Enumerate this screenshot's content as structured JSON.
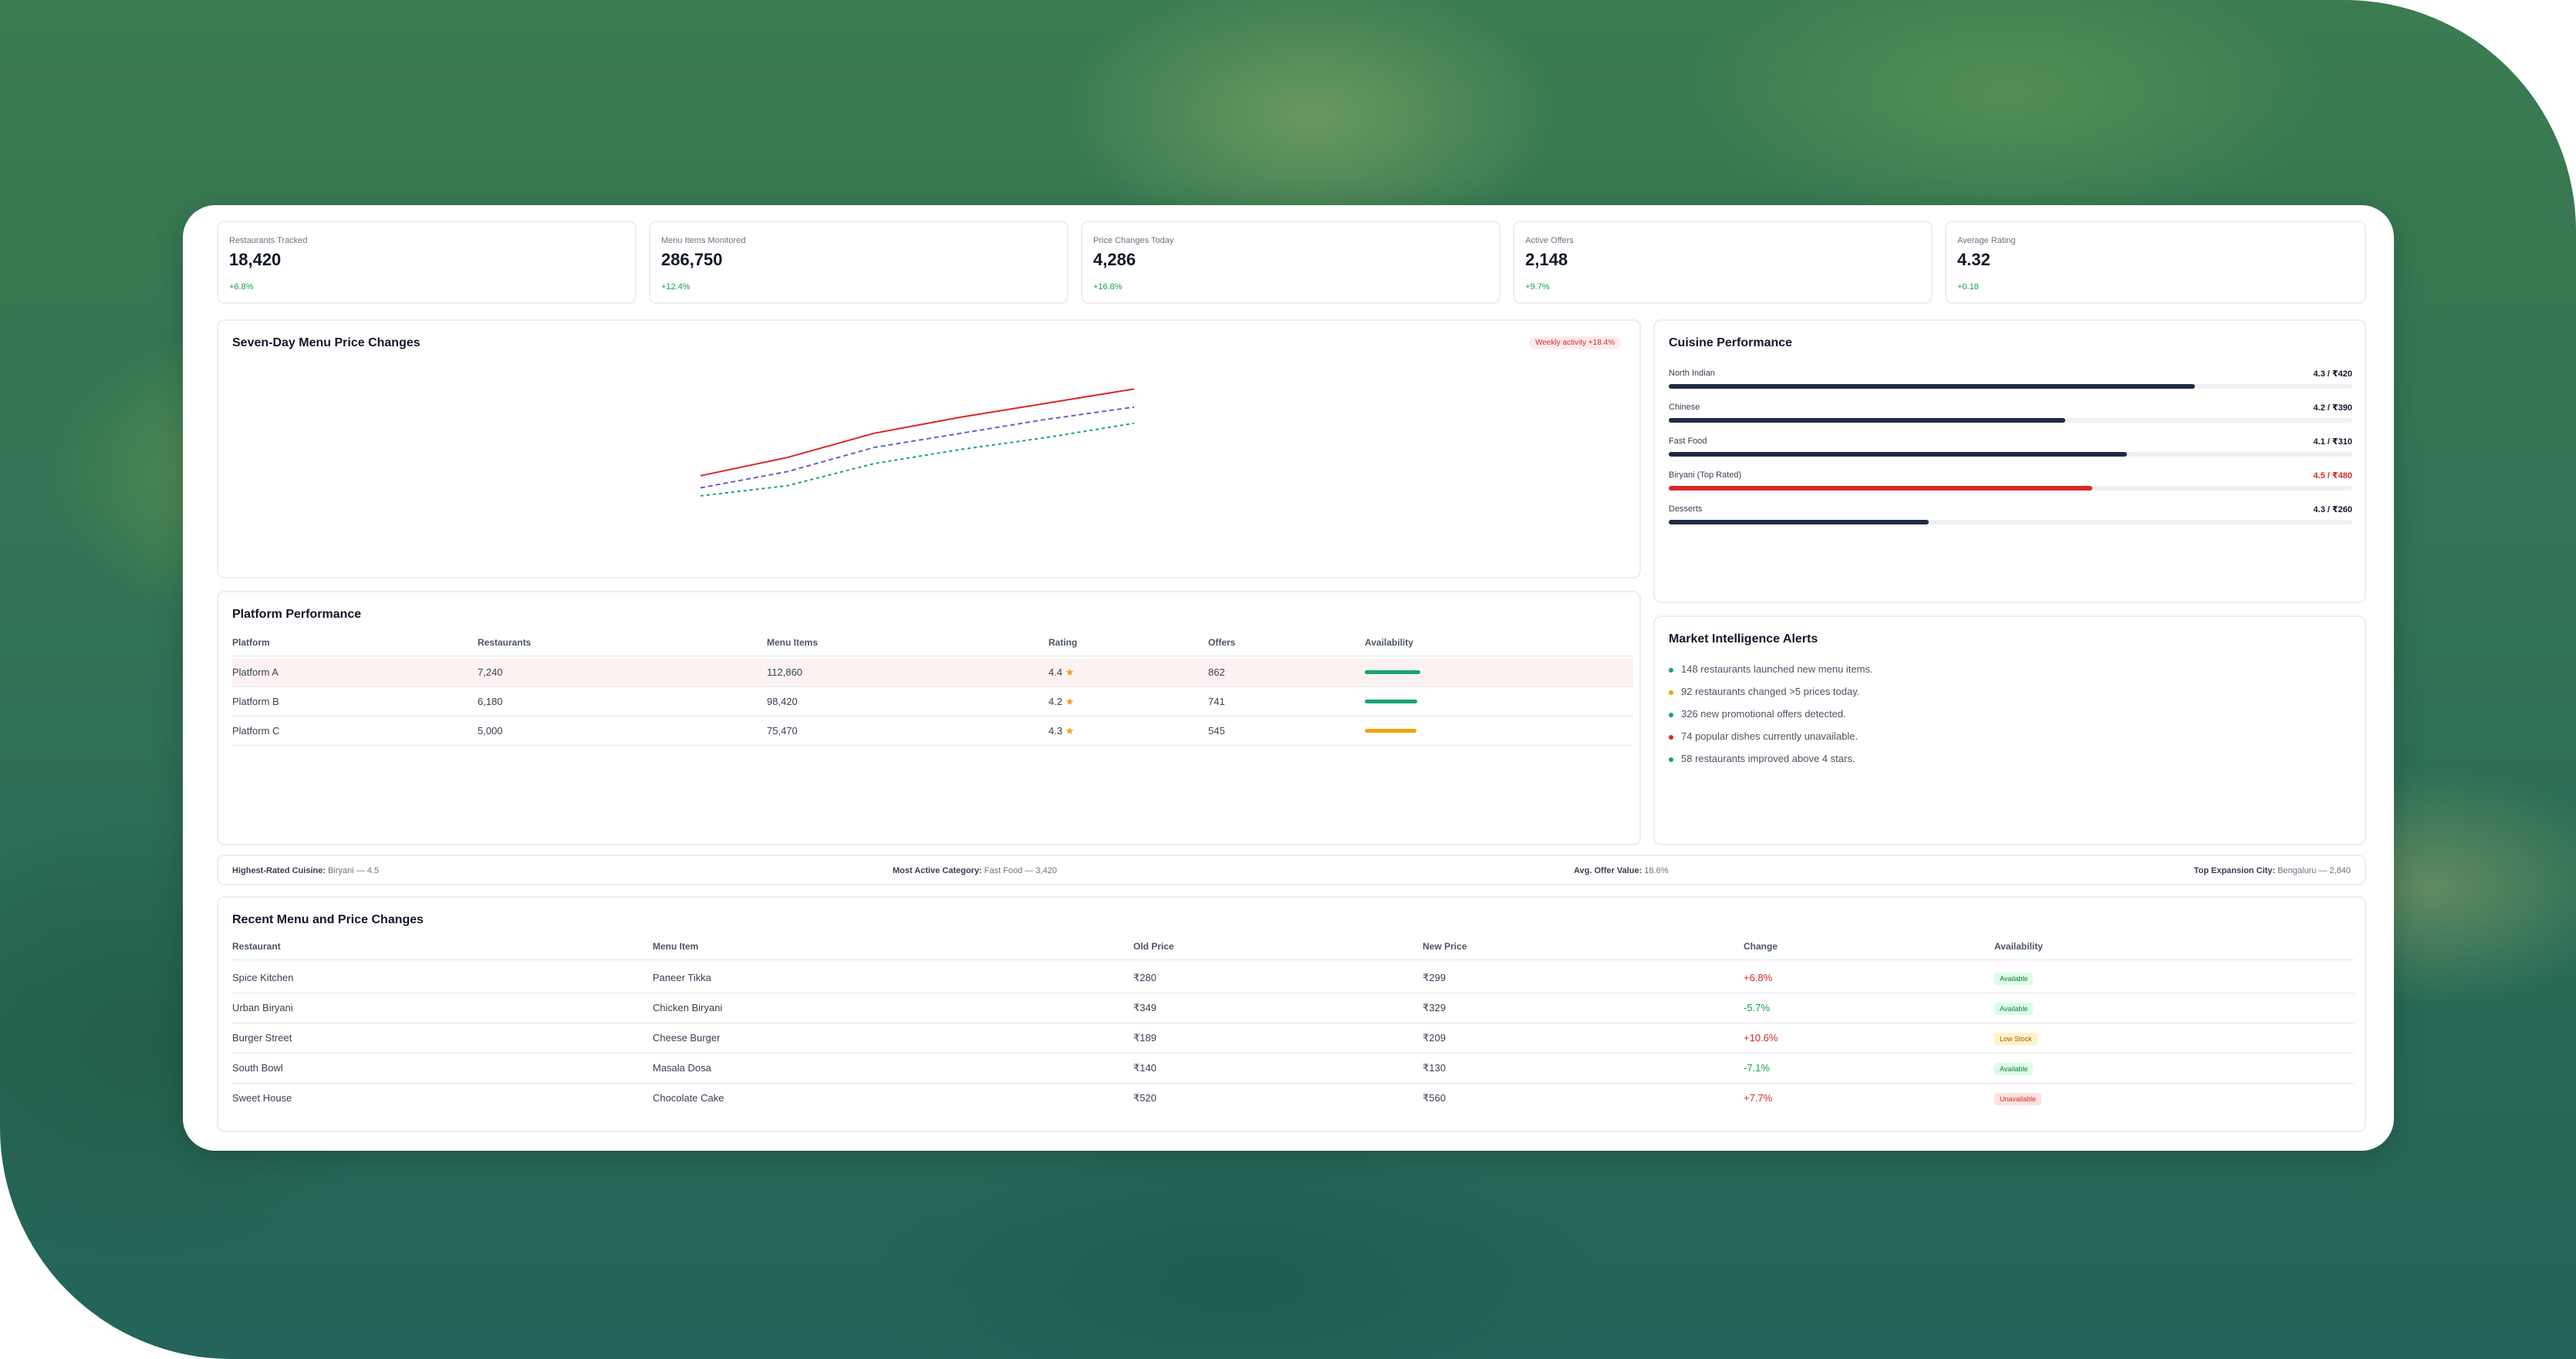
{
  "kpis": [
    {
      "label": "Restaurants Tracked",
      "value": "18,420",
      "delta": "+6.8%"
    },
    {
      "label": "Menu Items Monitored",
      "value": "286,750",
      "delta": "+12.4%"
    },
    {
      "label": "Price Changes Today",
      "value": "4,286",
      "delta": "+16.8%"
    },
    {
      "label": "Active Offers",
      "value": "2,148",
      "delta": "+9.7%"
    },
    {
      "label": "Average Rating",
      "value": "4.32",
      "delta": "+0.18"
    }
  ],
  "price_chart": {
    "title": "Seven-Day Menu Price Changes",
    "pill": "Weekly activity +18.4%",
    "colors": {
      "red": "#dc2626",
      "purple": "#6d5bd0",
      "green": "#16a37a"
    },
    "chart_data": {
      "type": "line",
      "series": [
        {
          "values": [
            0,
            18,
            42,
            58,
            72,
            86
          ]
        },
        {
          "values": [
            -12,
            4,
            28,
            42,
            56,
            68
          ]
        },
        {
          "values": [
            -20,
            -10,
            12,
            26,
            38,
            52
          ]
        }
      ],
      "ylim": [
        -30,
        100
      ]
    }
  },
  "cuisine": {
    "title": "Cuisine Performance",
    "items": [
      {
        "name": "North Indian",
        "value": "4.3 / ₹420",
        "pct": 0.77,
        "highlight": false
      },
      {
        "name": "Chinese",
        "value": "4.2 / ₹390",
        "pct": 0.58,
        "highlight": false
      },
      {
        "name": "Fast Food",
        "value": "4.1 / ₹310",
        "pct": 0.67,
        "highlight": false
      },
      {
        "name": "Biryani (Top Rated)",
        "value": "4.5 / ₹480",
        "pct": 0.62,
        "highlight": true
      },
      {
        "name": "Desserts",
        "value": "4.3 / ₹260",
        "pct": 0.38,
        "highlight": false
      }
    ]
  },
  "platforms": {
    "title": "Platform Performance",
    "headers": [
      "Platform",
      "Restaurants",
      "Menu Items",
      "Rating",
      "Offers",
      "Availability"
    ],
    "rows": [
      {
        "name": "Platform A",
        "restaurants": "7,240",
        "items": "112,860",
        "rating": "4.4",
        "offers": "862",
        "avail": 0.95,
        "color": "#16a37a"
      },
      {
        "name": "Platform B",
        "restaurants": "6,180",
        "items": "98,420",
        "rating": "4.2",
        "offers": "741",
        "avail": 0.9,
        "color": "#16a37a"
      },
      {
        "name": "Platform C",
        "restaurants": "5,000",
        "items": "75,470",
        "rating": "4.3",
        "offers": "545",
        "avail": 0.88,
        "color": "#f0a30a"
      }
    ]
  },
  "alerts": {
    "title": "Market Intelligence Alerts",
    "items": [
      {
        "text": "148 restaurants launched new menu items.",
        "color": "#16a37a"
      },
      {
        "text": "92 restaurants changed >5 prices today.",
        "color": "#f0a30a"
      },
      {
        "text": "326 new promotional offers detected.",
        "color": "#16a37a"
      },
      {
        "text": "74 popular dishes currently unavailable.",
        "color": "#dc2626"
      },
      {
        "text": "58 restaurants improved above 4 stars.",
        "color": "#16a37a"
      }
    ]
  },
  "summary": {
    "highest_label": "Highest-Rated Cuisine:",
    "highest_value": "Biryani — 4.5",
    "active_label": "Most Active Category:",
    "active_value": "Fast Food — 3,420",
    "offer_label": "Avg. Offer Value:",
    "offer_value": "18.6%",
    "city_label": "Top Expansion City:",
    "city_value": "Bengaluru — 2,840"
  },
  "changes": {
    "title": "Recent Menu and Price Changes",
    "headers": [
      "Restaurant",
      "Menu Item",
      "Old Price",
      "New Price",
      "Change",
      "Availability"
    ],
    "rows": [
      {
        "restaurant": "Spice Kitchen",
        "item": "Paneer Tikka",
        "old": "₹280",
        "new": "₹299",
        "change": "+6.8%",
        "up": true,
        "avail": "Available",
        "status": "ok"
      },
      {
        "restaurant": "Urban Biryani",
        "item": "Chicken Biryani",
        "old": "₹349",
        "new": "₹329",
        "change": "-5.7%",
        "up": false,
        "avail": "Available",
        "status": "ok"
      },
      {
        "restaurant": "Burger Street",
        "item": "Cheese Burger",
        "old": "₹189",
        "new": "₹209",
        "change": "+10.6%",
        "up": true,
        "avail": "Low Stock",
        "status": "low"
      },
      {
        "restaurant": "South Bowl",
        "item": "Masala Dosa",
        "old": "₹140",
        "new": "₹130",
        "change": "-7.1%",
        "up": false,
        "avail": "Available",
        "status": "ok"
      },
      {
        "restaurant": "Sweet House",
        "item": "Chocolate Cake",
        "old": "₹520",
        "new": "₹560",
        "change": "+7.7%",
        "up": true,
        "avail": "Unavailable",
        "status": "na"
      }
    ]
  }
}
